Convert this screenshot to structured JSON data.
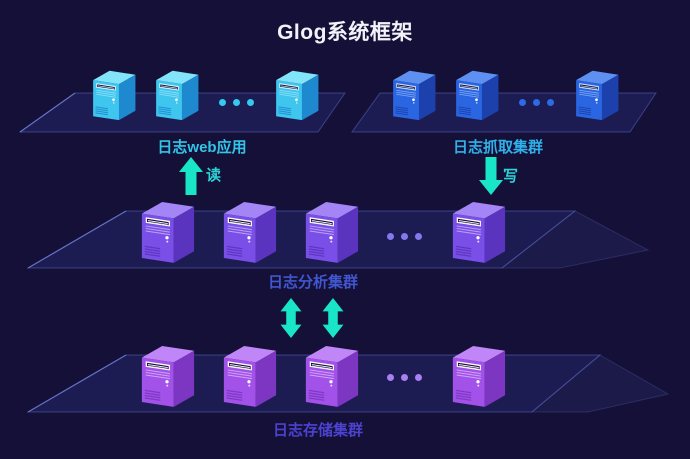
{
  "title": "Glog系统框架",
  "colors": {
    "background": "#141038",
    "platform": "#1d1c52",
    "arrow": "#19e6c9",
    "arrow_label": "#2bd4d4",
    "title": "#f2f3f8"
  },
  "clusters": [
    {
      "id": "web",
      "label": "日志web应用",
      "label_color": "#31c6e8",
      "layout": {
        "before_dots": 2,
        "after_dots": 1
      },
      "dot_color": "#35c9ef",
      "server_colors": {
        "top": "#82e4f8",
        "front": "#3ec6ee",
        "side": "#1f89cf",
        "slot_border": "#dcf5ff",
        "lines": "#dcf5ff",
        "interior": "#10103c",
        "grille": "#1f89cf"
      }
    },
    {
      "id": "capture",
      "label": "日志抓取集群",
      "label_color": "#30b0e8",
      "layout": {
        "before_dots": 2,
        "after_dots": 1
      },
      "dot_color": "#2d6ae4",
      "server_colors": {
        "top": "#5e90f2",
        "front": "#2b66e2",
        "side": "#1c41ac",
        "slot_border": "#cfe0ff",
        "lines": "#cfe0ff",
        "interior": "#0e0d38",
        "grille": "#1c41ac"
      }
    },
    {
      "id": "analysis",
      "label": "日志分析集群",
      "label_color": "#4156cf",
      "layout": {
        "before_dots": 3,
        "after_dots": 1
      },
      "dot_color": "#8677ec",
      "server_colors": {
        "top": "#a385f6",
        "front": "#7a4fe8",
        "side": "#5a33bf",
        "slot_border": "#ffffff",
        "lines": "#efe9ff",
        "interior": "#1a1040",
        "grille": "#5a33bf"
      }
    },
    {
      "id": "storage",
      "label": "日志存储集群",
      "label_color": "#4c42cf",
      "layout": {
        "before_dots": 3,
        "after_dots": 1
      },
      "dot_color": "#aa7ff1",
      "server_colors": {
        "top": "#c086f7",
        "front": "#a251e9",
        "side": "#7c36c2",
        "slot_border": "#ffffff",
        "lines": "#f4ebff",
        "interior": "#1a1040",
        "grille": "#7c36c2"
      }
    }
  ],
  "arrows": {
    "read": {
      "label": "读",
      "direction": "up"
    },
    "write": {
      "label": "写",
      "direction": "down"
    },
    "sync": {
      "label": "",
      "direction": "both"
    }
  }
}
